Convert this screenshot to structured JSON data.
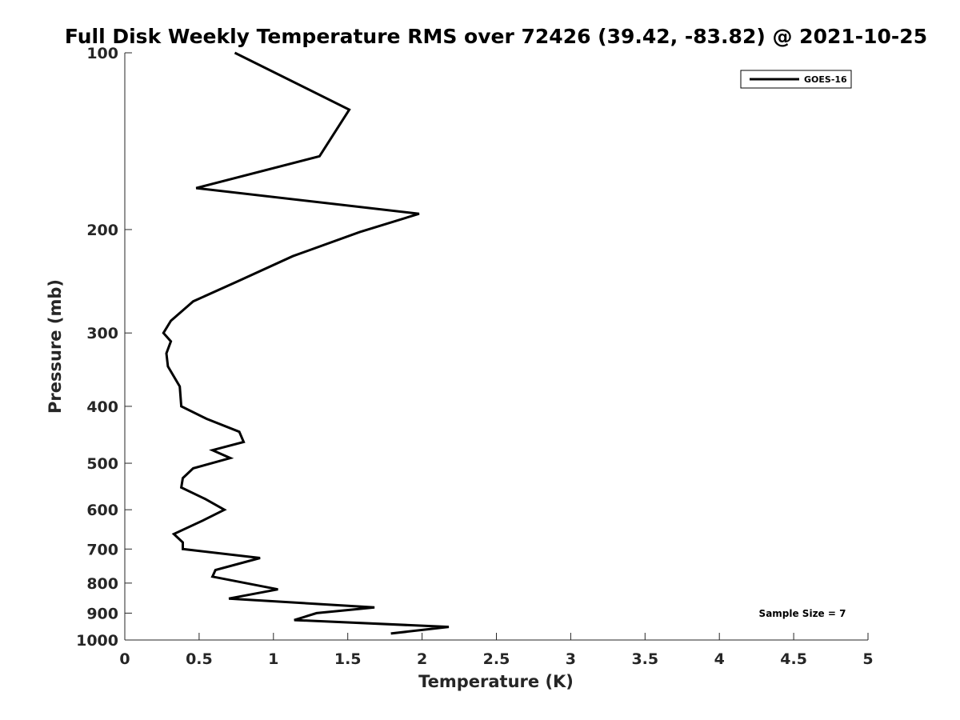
{
  "chart_data": {
    "type": "line",
    "title": "Full Disk Weekly Temperature RMS over 72426 (39.42, -83.82) @ 2021-10-25",
    "xlabel": "Temperature (K)",
    "ylabel": "Pressure (mb)",
    "xlim": [
      0,
      5
    ],
    "ylim": [
      100,
      1000
    ],
    "y_scale": "log",
    "y_reversed": true,
    "x_ticks": [
      "0",
      "0.5",
      "1",
      "1.5",
      "2",
      "2.5",
      "3",
      "3.5",
      "4",
      "4.5",
      "5"
    ],
    "y_ticks": [
      "100",
      "200",
      "300",
      "400",
      "500",
      "600",
      "700",
      "800",
      "900",
      "1000"
    ],
    "grid": false,
    "legend_position": "top-right",
    "series": [
      {
        "name": "GOES-16",
        "color": "#000000",
        "x": [
          0.74,
          1.51,
          1.31,
          0.48,
          1.98,
          1.58,
          1.13,
          0.76,
          0.46,
          0.31,
          0.26,
          0.31,
          0.28,
          0.29,
          0.37,
          0.38,
          0.55,
          0.77,
          0.8,
          0.59,
          0.71,
          0.46,
          0.39,
          0.38,
          0.54,
          0.67,
          0.53,
          0.33,
          0.39,
          0.39,
          0.91,
          0.61,
          0.59,
          1.03,
          0.7,
          1.68,
          1.29,
          1.14,
          2.18,
          1.79
        ],
        "y": [
          100,
          125,
          150,
          170,
          188,
          202,
          222,
          245,
          265,
          286,
          300,
          310,
          325,
          342,
          370,
          400,
          420,
          442,
          460,
          475,
          490,
          510,
          530,
          550,
          575,
          600,
          625,
          660,
          682,
          700,
          725,
          760,
          780,
          820,
          850,
          880,
          900,
          925,
          950,
          975
        ]
      }
    ],
    "annotations": [
      "Sample Size = 7"
    ]
  }
}
